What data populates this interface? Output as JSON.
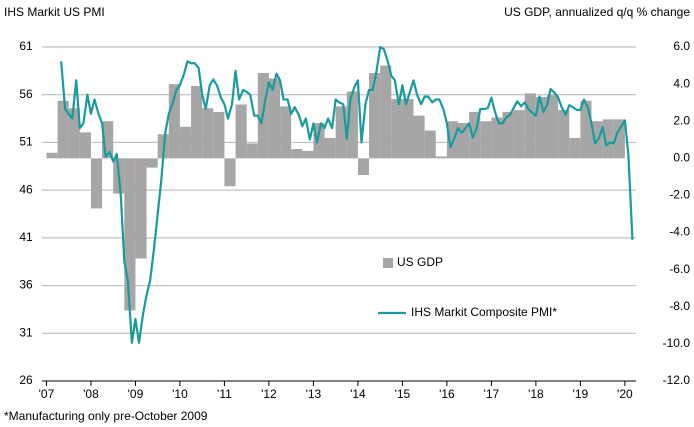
{
  "chart_data": {
    "type": "bar_line",
    "title": "IHS Markit US PMI",
    "y2_title": "US GDP, annualized q/q % change",
    "footnote": "*Manufacturing only pre-October 2009",
    "xlim": [
      2006.9,
      2020.25
    ],
    "xticks": [
      {
        "value": 2007,
        "label": "'07"
      },
      {
        "value": 2008,
        "label": "'08"
      },
      {
        "value": 2009,
        "label": "'09"
      },
      {
        "value": 2010,
        "label": "'10"
      },
      {
        "value": 2011,
        "label": "'11"
      },
      {
        "value": 2012,
        "label": "'12"
      },
      {
        "value": 2013,
        "label": "'13"
      },
      {
        "value": 2014,
        "label": "'14"
      },
      {
        "value": 2015,
        "label": "'15"
      },
      {
        "value": 2016,
        "label": "'16"
      },
      {
        "value": 2017,
        "label": "'17"
      },
      {
        "value": 2018,
        "label": "'18"
      },
      {
        "value": 2019,
        "label": "'19"
      },
      {
        "value": 2020,
        "label": "'20"
      }
    ],
    "ylim": [
      26,
      61
    ],
    "yticks": [
      61,
      56,
      51,
      46,
      41,
      36,
      31,
      26
    ],
    "y2lim": [
      -12,
      6
    ],
    "y2ticks": [
      {
        "value": 6,
        "label": "6.0"
      },
      {
        "value": 4,
        "label": "4.0"
      },
      {
        "value": 2,
        "label": "2.0"
      },
      {
        "value": 0,
        "label": "0.0"
      },
      {
        "value": -2,
        "label": "-2.0"
      },
      {
        "value": -4,
        "label": "-4.0"
      },
      {
        "value": -6,
        "label": "-6.0"
      },
      {
        "value": -8,
        "label": "-8.0"
      },
      {
        "value": -10,
        "label": "-10.0"
      },
      {
        "value": -12,
        "label": "-12.0"
      }
    ],
    "grid": true,
    "series": [
      {
        "name": "US GDP",
        "kind": "bar",
        "axis": "y2",
        "color": "#a6a6a6",
        "x": [
          2007.125,
          2007.375,
          2007.625,
          2007.875,
          2008.125,
          2008.375,
          2008.625,
          2008.875,
          2009.125,
          2009.375,
          2009.625,
          2009.875,
          2010.125,
          2010.375,
          2010.625,
          2010.875,
          2011.125,
          2011.375,
          2011.625,
          2011.875,
          2012.125,
          2012.375,
          2012.625,
          2012.875,
          2013.125,
          2013.375,
          2013.625,
          2013.875,
          2014.125,
          2014.375,
          2014.625,
          2014.875,
          2015.125,
          2015.375,
          2015.625,
          2015.875,
          2016.125,
          2016.375,
          2016.625,
          2016.875,
          2017.125,
          2017.375,
          2017.625,
          2017.875,
          2018.125,
          2018.375,
          2018.625,
          2018.875,
          2019.125,
          2019.375,
          2019.625,
          2019.875
        ],
        "values": [
          0.3,
          3.1,
          2.7,
          1.4,
          -2.7,
          2.0,
          -1.9,
          -8.2,
          -5.4,
          -0.5,
          1.3,
          4.0,
          1.7,
          3.9,
          2.7,
          2.5,
          -1.5,
          2.9,
          0.8,
          4.6,
          4.3,
          2.8,
          0.5,
          0.4,
          1.9,
          1.1,
          2.8,
          3.6,
          -0.9,
          4.6,
          5.0,
          3.2,
          3.2,
          2.3,
          1.5,
          0.1,
          2.0,
          1.9,
          2.5,
          2.0,
          2.2,
          2.5,
          2.6,
          3.5,
          3.3,
          3.4,
          2.6,
          1.1,
          3.1,
          2.0,
          2.1,
          2.1
        ]
      },
      {
        "name": "IHS Markit Composite PMI*",
        "kind": "line",
        "axis": "y",
        "color": "#1a9b9b",
        "x": [
          2007.33,
          2007.42,
          2007.5,
          2007.58,
          2007.67,
          2007.75,
          2007.83,
          2007.92,
          2008,
          2008.08,
          2008.17,
          2008.25,
          2008.33,
          2008.42,
          2008.5,
          2008.58,
          2008.67,
          2008.75,
          2008.83,
          2008.92,
          2009,
          2009.08,
          2009.17,
          2009.25,
          2009.33,
          2009.42,
          2009.5,
          2009.58,
          2009.67,
          2009.75,
          2009.83,
          2009.92,
          2010,
          2010.08,
          2010.17,
          2010.25,
          2010.33,
          2010.42,
          2010.5,
          2010.58,
          2010.67,
          2010.75,
          2010.83,
          2010.92,
          2011,
          2011.08,
          2011.17,
          2011.25,
          2011.33,
          2011.42,
          2011.5,
          2011.58,
          2011.67,
          2011.75,
          2011.83,
          2011.92,
          2012,
          2012.08,
          2012.17,
          2012.25,
          2012.33,
          2012.42,
          2012.5,
          2012.58,
          2012.67,
          2012.75,
          2012.83,
          2012.92,
          2013,
          2013.08,
          2013.17,
          2013.25,
          2013.33,
          2013.42,
          2013.5,
          2013.58,
          2013.67,
          2013.75,
          2013.83,
          2013.92,
          2014,
          2014.08,
          2014.17,
          2014.25,
          2014.33,
          2014.42,
          2014.5,
          2014.58,
          2014.67,
          2014.75,
          2014.83,
          2014.92,
          2015,
          2015.08,
          2015.17,
          2015.25,
          2015.33,
          2015.42,
          2015.5,
          2015.58,
          2015.67,
          2015.75,
          2015.83,
          2015.92,
          2016,
          2016.08,
          2016.17,
          2016.25,
          2016.33,
          2016.42,
          2016.5,
          2016.58,
          2016.67,
          2016.75,
          2016.83,
          2016.92,
          2017,
          2017.08,
          2017.17,
          2017.25,
          2017.33,
          2017.42,
          2017.5,
          2017.58,
          2017.67,
          2017.75,
          2017.83,
          2017.92,
          2018,
          2018.08,
          2018.17,
          2018.25,
          2018.33,
          2018.42,
          2018.5,
          2018.58,
          2018.67,
          2018.75,
          2018.83,
          2018.92,
          2019,
          2019.08,
          2019.17,
          2019.25,
          2019.33,
          2019.42,
          2019.5,
          2019.58,
          2019.67,
          2019.75,
          2019.83,
          2019.92,
          2020,
          2020.08,
          2020.17
        ],
        "values": [
          59.5,
          54.5,
          54,
          53.5,
          57.5,
          52.5,
          53,
          56,
          54,
          55.5,
          54,
          53,
          49.5,
          50,
          49,
          49.8,
          45.5,
          38.5,
          36.5,
          30,
          32.5,
          30,
          33,
          35,
          36.5,
          40,
          43.5,
          47,
          52,
          54,
          55,
          56.5,
          57,
          58,
          59.5,
          59.3,
          59.3,
          58.8,
          56,
          54.5,
          57,
          57.6,
          57,
          55.7,
          55,
          53.5,
          55,
          58.5,
          55.5,
          56.5,
          56.3,
          56,
          53.8,
          53.8,
          53,
          55.5,
          57.3,
          56.5,
          58.2,
          57.5,
          55.5,
          55.5,
          54,
          54.7,
          53.9,
          52.7,
          53.5,
          51.3,
          53,
          51,
          53,
          52.5,
          53.5,
          52.5,
          55.5,
          55.2,
          55,
          51.4,
          55.5,
          56.8,
          57.5,
          51,
          55,
          56.5,
          56.5,
          58.5,
          61,
          60.8,
          59.5,
          58,
          57.5,
          55,
          57,
          55,
          56.3,
          57.5,
          56,
          55,
          55.8,
          55.8,
          55.2,
          55.5,
          55.5,
          54.5,
          53,
          50.5,
          51.5,
          52.5,
          52,
          52.5,
          53,
          51.5,
          52.5,
          54.5,
          54.5,
          54.6,
          55.7,
          54.2,
          53,
          53,
          53.6,
          53.9,
          54.6,
          55.3,
          54.8,
          55.2,
          54.5,
          54.1,
          53.8,
          55.8,
          54.2,
          54.9,
          56.6,
          56.2,
          55.7,
          54.7,
          53.9,
          54.9,
          54.7,
          54.4,
          54.4,
          55.5,
          54.6,
          53,
          50.9,
          51.5,
          52.6,
          50.7,
          51,
          50.9,
          52,
          52.7,
          53.3,
          49.6,
          40.8
        ]
      }
    ]
  }
}
